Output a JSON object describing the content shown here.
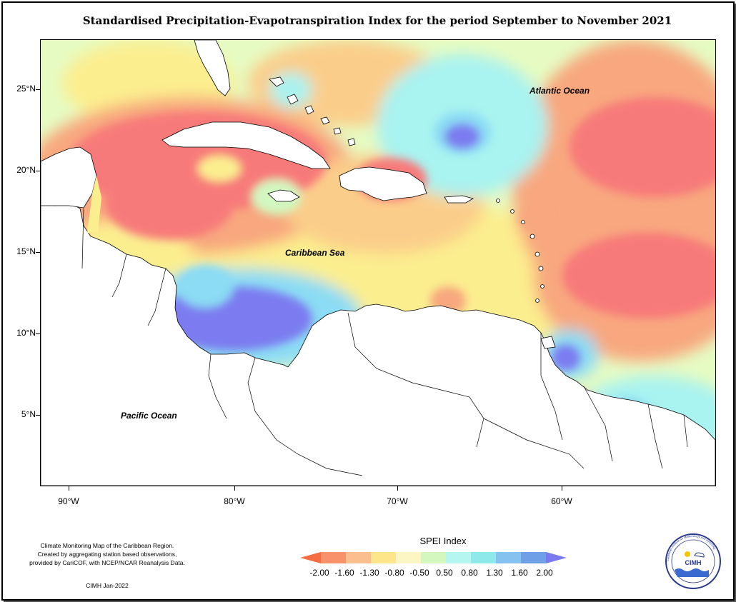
{
  "title": "Standardised Precipitation-Evapotranspiration Index for the period September to November 2021",
  "labels": {
    "atlantic": "Atlantic Ocean",
    "caribbean": "Caribbean Sea",
    "pacific": "Pacific Ocean"
  },
  "axes": {
    "y_ticks": [
      "25°N",
      "20°N",
      "15°N",
      "10°N",
      "5°N"
    ],
    "x_ticks": [
      "90°W",
      "80°W",
      "70°W",
      "60°W"
    ]
  },
  "credits": {
    "line1": "Climate Monitoring Map of the Caribbean Region.",
    "line2": "Created by aggregating station based observations,",
    "line3": "provided by CariCOF, with NCEP/NCAR Reanalysis Data.",
    "line4": "CIMH Jan-2022"
  },
  "legend": {
    "title": "SPEI Index",
    "values": [
      "-2.00",
      "-1.60",
      "-1.30",
      "-0.80",
      "-0.50",
      "0.50",
      "0.80",
      "1.30",
      "1.60",
      "2.00"
    ],
    "colors": [
      "#f46d43",
      "#f7926b",
      "#fbbf8f",
      "#fde68a",
      "#fbf6c4",
      "#d4f7c0",
      "#b5f6f0",
      "#8ee9ea",
      "#86c2f0",
      "#6f9fe6",
      "#7a7af0"
    ]
  },
  "logo": {
    "text": "CIMH",
    "ring_text": "Caribbean Institute for Meteorology and Hydrology"
  },
  "colors": {
    "very_dry": "#f77a7a",
    "dry": "#f8a77e",
    "mod_dry": "#fbcd8a",
    "slight_dry": "#fbee8f",
    "near_normal": "#f1f9bb",
    "slight_wet": "#d2f7c0",
    "wet": "#a9f3f0",
    "mod_wet": "#8bdcf4",
    "very_wet": "#7b7bf0"
  }
}
